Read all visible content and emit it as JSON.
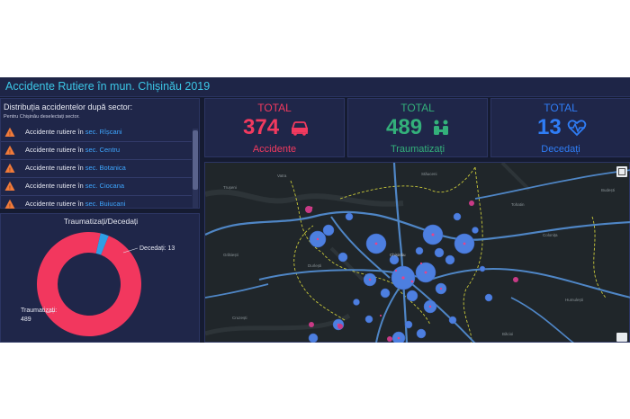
{
  "header": {
    "title": "Accidente Rutiere în mun. Chișinău 2019"
  },
  "sector_list": {
    "heading": "Distribuția accidentelor după sector:",
    "subheading": "Pentru Chișinău deselectați sector.",
    "items": [
      {
        "prefix": "Accidente rutiere în",
        "sector": "sec. Rîșcani"
      },
      {
        "prefix": "Accidente rutiere în",
        "sector": "sec. Centru"
      },
      {
        "prefix": "Accidente rutiere în",
        "sector": "sec. Botanica"
      },
      {
        "prefix": "Accidente rutiere în",
        "sector": "sec. Ciocana"
      },
      {
        "prefix": "Accidente rutiere în",
        "sector": "sec. Buiucani"
      }
    ]
  },
  "kpis": {
    "accidents": {
      "label": "TOTAL",
      "value": "374",
      "caption": "Accidente",
      "icon": "car-icon",
      "color": "#f23a5f"
    },
    "injured": {
      "label": "TOTAL",
      "value": "489",
      "caption": "Traumatizați",
      "icon": "people-icon",
      "color": "#33b07a"
    },
    "deaths": {
      "label": "TOTAL",
      "value": "13",
      "caption": "Decedați",
      "icon": "heartbeat-icon",
      "color": "#2f7df6"
    }
  },
  "chart_title": "Traumatizați/Decedați",
  "chart_data": {
    "type": "pie",
    "title": "Traumatizați/Decedați",
    "categories": [
      "Traumatizați",
      "Decedați"
    ],
    "values": [
      489,
      13
    ],
    "colors": [
      "#f2375e",
      "#2f9fe6"
    ],
    "labels": {
      "injured_line1": "Traumatizați:",
      "injured_line2": "489",
      "deaths": "Decedați: 13"
    }
  },
  "map": {
    "labels": [
      "Vatra",
      "Stăuceni",
      "Tohatin",
      "Colonița",
      "Budești",
      "Durlești",
      "Chișinău",
      "Humulești",
      "Trușeni",
      "Grătiești",
      "Cruzești",
      "Băcioi"
    ],
    "basemap_button": "basemap-gallery-icon"
  },
  "theme": {
    "background": "#151b31",
    "panel": "#1f2649",
    "title_color": "#3cc8e8",
    "link_color": "#3ea6ff"
  }
}
